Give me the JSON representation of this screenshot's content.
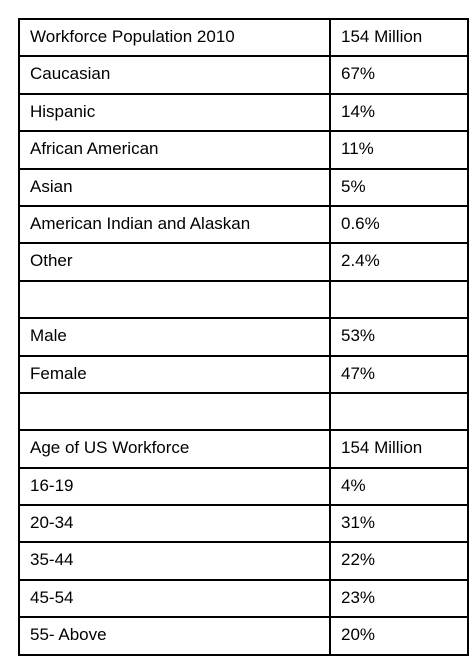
{
  "table": {
    "rows": [
      {
        "label": "Workforce Population 2010",
        "value": "154 Million"
      },
      {
        "label": "Caucasian",
        "value": "67%"
      },
      {
        "label": "Hispanic",
        "value": "14%"
      },
      {
        "label": "African American",
        "value": "11%"
      },
      {
        "label": "Asian",
        "value": "5%"
      },
      {
        "label": "American Indian and Alaskan",
        "value": "0.6%"
      },
      {
        "label": "Other",
        "value": "2.4%"
      },
      {
        "label": "",
        "value": ""
      },
      {
        "label": "Male",
        "value": "53%"
      },
      {
        "label": "Female",
        "value": "47%"
      },
      {
        "label": "",
        "value": ""
      },
      {
        "label": "Age of US Workforce",
        "value": "154 Million"
      },
      {
        "label": "16-19",
        "value": "4%"
      },
      {
        "label": "20-34",
        "value": "31%"
      },
      {
        "label": "35-44",
        "value": "22%"
      },
      {
        "label": "45-54",
        "value": "23%"
      },
      {
        "label": "55- Above",
        "value": "20%"
      }
    ]
  }
}
